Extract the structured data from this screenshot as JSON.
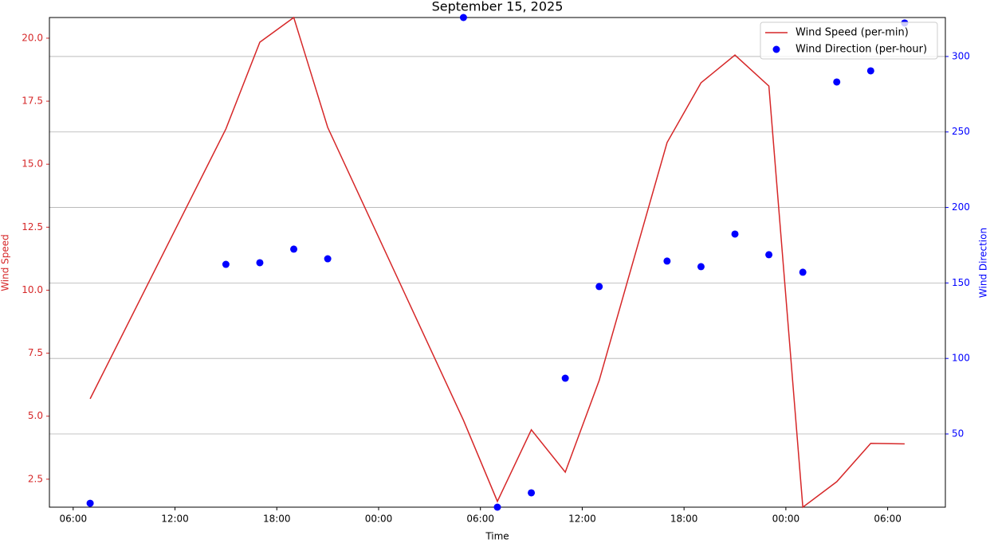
{
  "chart_data": {
    "type": "line",
    "title": "September 15, 2025",
    "x_label": "Time",
    "y_label": "Wind Speed",
    "y2_label": "Wind Direction",
    "x": [
      7,
      15,
      17,
      19,
      21,
      29,
      31,
      33,
      35,
      37,
      41,
      43,
      45,
      47,
      49,
      51,
      53,
      55
    ],
    "series": [
      {
        "name": "Wind Speed (per-min)",
        "type": "line",
        "color": "#d62728",
        "axis": "y",
        "values": [
          5.69,
          16.4,
          19.84,
          20.82,
          16.46,
          4.84,
          1.62,
          4.46,
          2.78,
          6.42,
          15.86,
          18.23,
          19.33,
          18.1,
          1.39,
          2.4,
          3.92,
          3.9
        ]
      },
      {
        "name": "Wind Direction (per-hour)",
        "type": "scatter",
        "color": "#0000ff",
        "axis": "y2",
        "values": [
          4.1,
          162.3,
          163.4,
          172.4,
          166.0,
          325.8,
          1.5,
          11,
          86.9,
          147.6,
          164.5,
          160.8,
          182.4,
          168.7,
          157.1,
          283.1,
          290.5,
          322.2
        ]
      }
    ],
    "xlim": [
      4.6,
      57.4
    ],
    "xticks": [
      {
        "value": 6,
        "label": "06:00"
      },
      {
        "value": 12,
        "label": "12:00"
      },
      {
        "value": 18,
        "label": "18:00"
      },
      {
        "value": 24,
        "label": "00:00"
      },
      {
        "value": 30,
        "label": "06:00"
      },
      {
        "value": 36,
        "label": "12:00"
      },
      {
        "value": 42,
        "label": "18:00"
      },
      {
        "value": 48,
        "label": "00:00"
      },
      {
        "value": 54,
        "label": "06:00"
      }
    ],
    "ylim": [
      1.39,
      20.82
    ],
    "yticks": [
      2.5,
      {
        "value": 5,
        "label": "5.0"
      },
      7.5,
      {
        "value": 10,
        "label": "10.0"
      },
      12.5,
      {
        "value": 15,
        "label": "15.0"
      },
      17.5,
      {
        "value": 20,
        "label": "20.0"
      }
    ],
    "y2lim": [
      1.5,
      325.8
    ],
    "y2ticks": [
      50,
      100,
      150,
      200,
      250,
      300
    ],
    "grid": "y2",
    "legend": "upper-right"
  }
}
